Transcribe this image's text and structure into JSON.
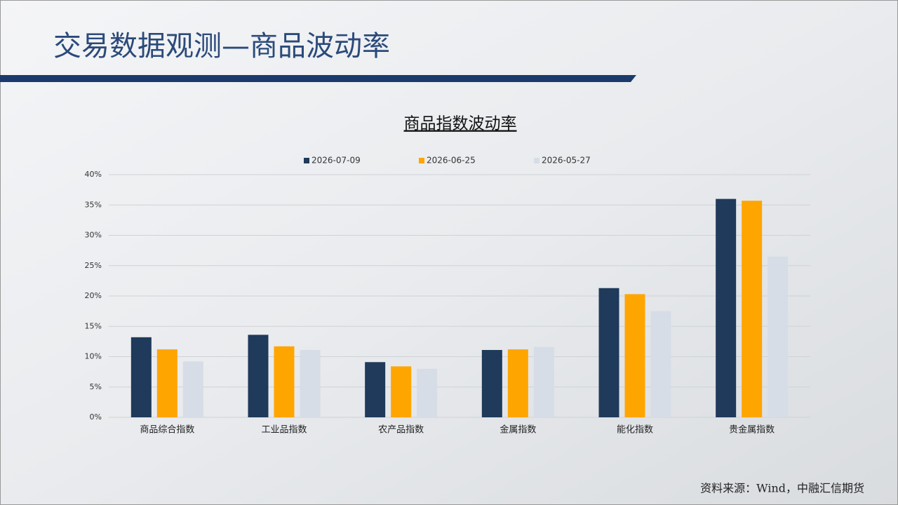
{
  "header": {
    "title": "交易数据观测—商品波动率"
  },
  "chart_data": {
    "type": "bar",
    "title": "商品指数波动率",
    "categories": [
      "商品综合指数",
      "工业品指数",
      "农产品指数",
      "金属指数",
      "能化指数",
      "贵金属指数"
    ],
    "series": [
      {
        "name": "2026-07-09",
        "color": "#1f3a5a",
        "values": [
          13.2,
          13.6,
          9.1,
          11.1,
          21.3,
          36.0
        ]
      },
      {
        "name": "2026-06-25",
        "color": "#ffa500",
        "values": [
          11.2,
          11.7,
          8.4,
          11.2,
          20.3,
          35.7
        ]
      },
      {
        "name": "2026-05-27",
        "color": "#d6dde6",
        "values": [
          9.2,
          11.1,
          8.0,
          11.6,
          17.5,
          26.5
        ]
      }
    ],
    "ylim": [
      0,
      40
    ],
    "yticks": [
      {
        "value": 0,
        "label": "0%"
      },
      {
        "value": 5,
        "label": "5%"
      },
      {
        "value": 10,
        "label": "10%"
      },
      {
        "value": 15,
        "label": "15%"
      },
      {
        "value": 20,
        "label": "20%"
      },
      {
        "value": 25,
        "label": "25%"
      },
      {
        "value": 30,
        "label": "30%"
      },
      {
        "value": 35,
        "label": "35%"
      },
      {
        "value": 40,
        "label": "40%"
      }
    ],
    "grid": true
  },
  "footer": {
    "source": "资料来源：Wind，中融汇信期货"
  }
}
